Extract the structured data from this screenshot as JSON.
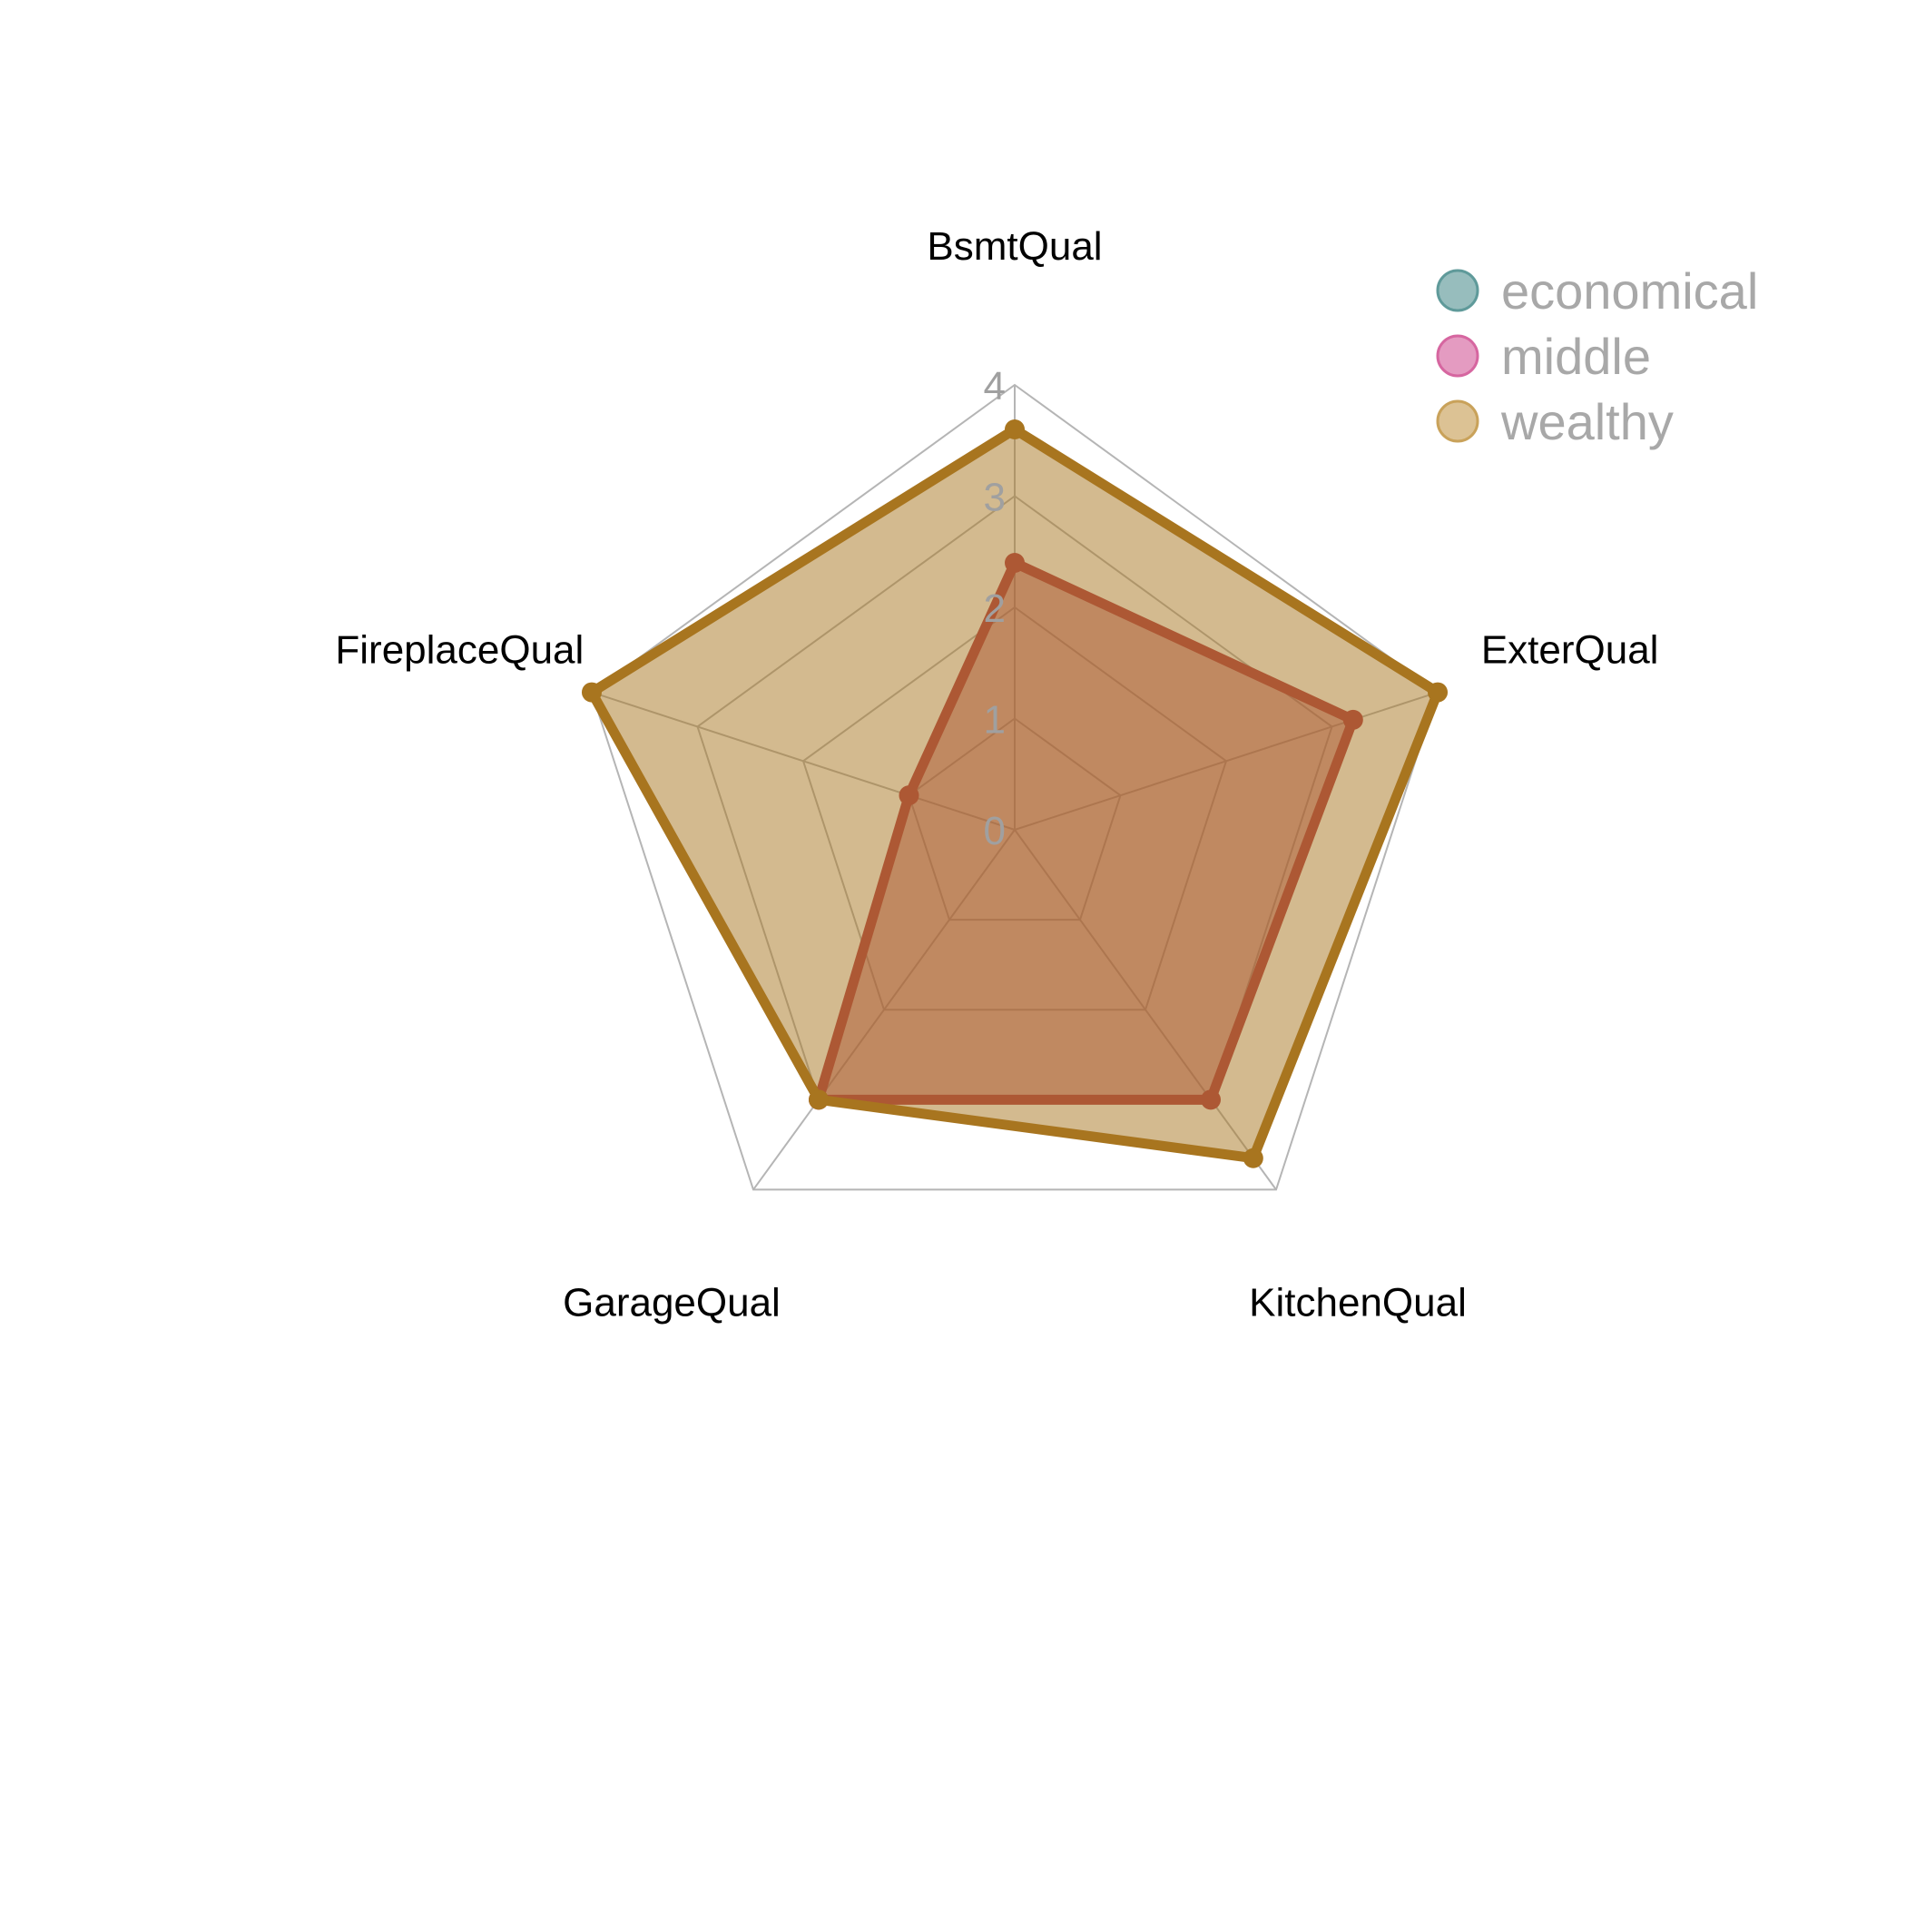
{
  "chart_data": {
    "type": "radar",
    "axes": [
      "BsmtQual",
      "ExterQual",
      "KitchenQual",
      "GarageQual",
      "FireplaceQual"
    ],
    "ticks": [
      "0",
      "1",
      "2",
      "3",
      "4"
    ],
    "range": [
      0,
      4
    ],
    "legend_position": "top-right",
    "series": [
      {
        "name": "economical",
        "color": "#5f9a9a",
        "values": [
          0,
          0,
          0,
          0,
          0
        ],
        "visible": false
      },
      {
        "name": "middle",
        "color": "#b23a48",
        "legend_color": "#d666a0",
        "values": [
          2.4,
          3.2,
          3.0,
          3.0,
          1.0
        ]
      },
      {
        "name": "wealthy",
        "color": "#a8751f",
        "legend_color": "#c9a25a",
        "values": [
          3.6,
          4.0,
          3.65,
          3.0,
          4.0
        ]
      }
    ]
  }
}
